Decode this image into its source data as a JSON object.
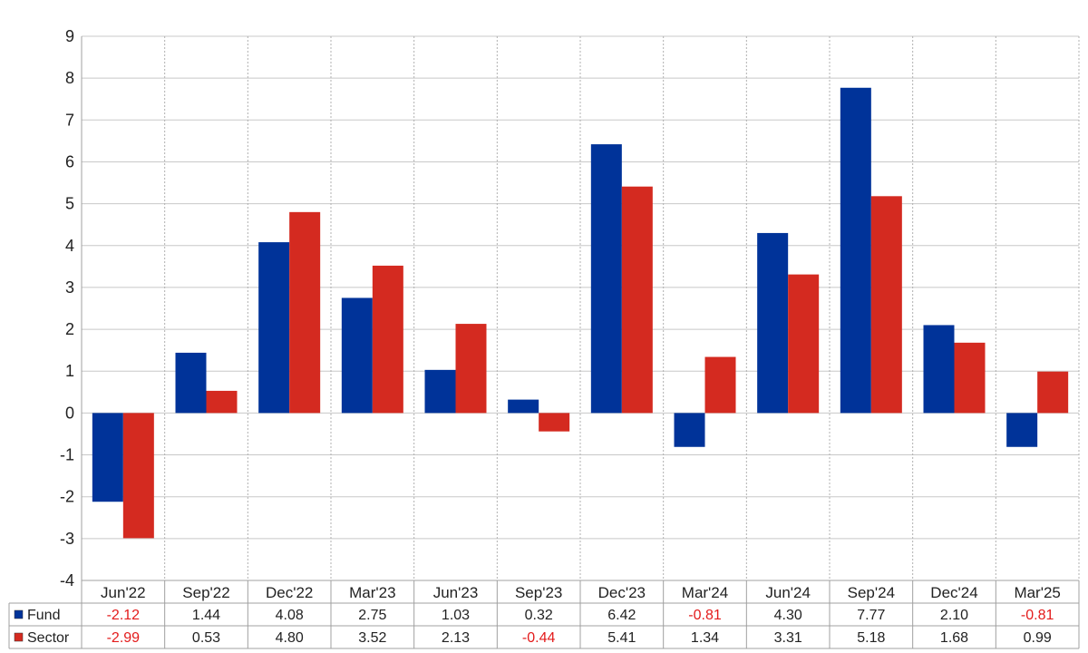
{
  "chart_data": {
    "type": "bar",
    "categories": [
      "Jun'22",
      "Sep'22",
      "Dec'22",
      "Mar'23",
      "Jun'23",
      "Sep'23",
      "Dec'23",
      "Mar'24",
      "Jun'24",
      "Sep'24",
      "Dec'24",
      "Mar'25"
    ],
    "series": [
      {
        "name": "Fund",
        "color": "#003399",
        "values": [
          -2.12,
          1.44,
          4.08,
          2.75,
          1.03,
          0.32,
          6.42,
          -0.81,
          4.3,
          7.77,
          2.1,
          -0.81
        ],
        "labels": [
          "-2.12",
          "1.44",
          "4.08",
          "2.75",
          "1.03",
          "0.32",
          "6.42",
          "-0.81",
          "4.30",
          "7.77",
          "2.10",
          "-0.81"
        ]
      },
      {
        "name": "Sector",
        "color": "#d42a20",
        "values": [
          -2.99,
          0.53,
          4.8,
          3.52,
          2.13,
          -0.44,
          5.41,
          1.34,
          3.31,
          5.18,
          1.68,
          0.99
        ],
        "labels": [
          "-2.99",
          "0.53",
          "4.80",
          "3.52",
          "2.13",
          "-0.44",
          "5.41",
          "1.34",
          "3.31",
          "5.18",
          "1.68",
          "0.99"
        ]
      }
    ],
    "ylim": [
      -4,
      9
    ],
    "yticks": [
      "-4",
      "-3",
      "-2",
      "-1",
      "0",
      "1",
      "2",
      "3",
      "4",
      "5",
      "6",
      "7",
      "8",
      "9"
    ],
    "negative_color": "#e31b1b",
    "grid": true,
    "legend": "data-table-bottom"
  }
}
